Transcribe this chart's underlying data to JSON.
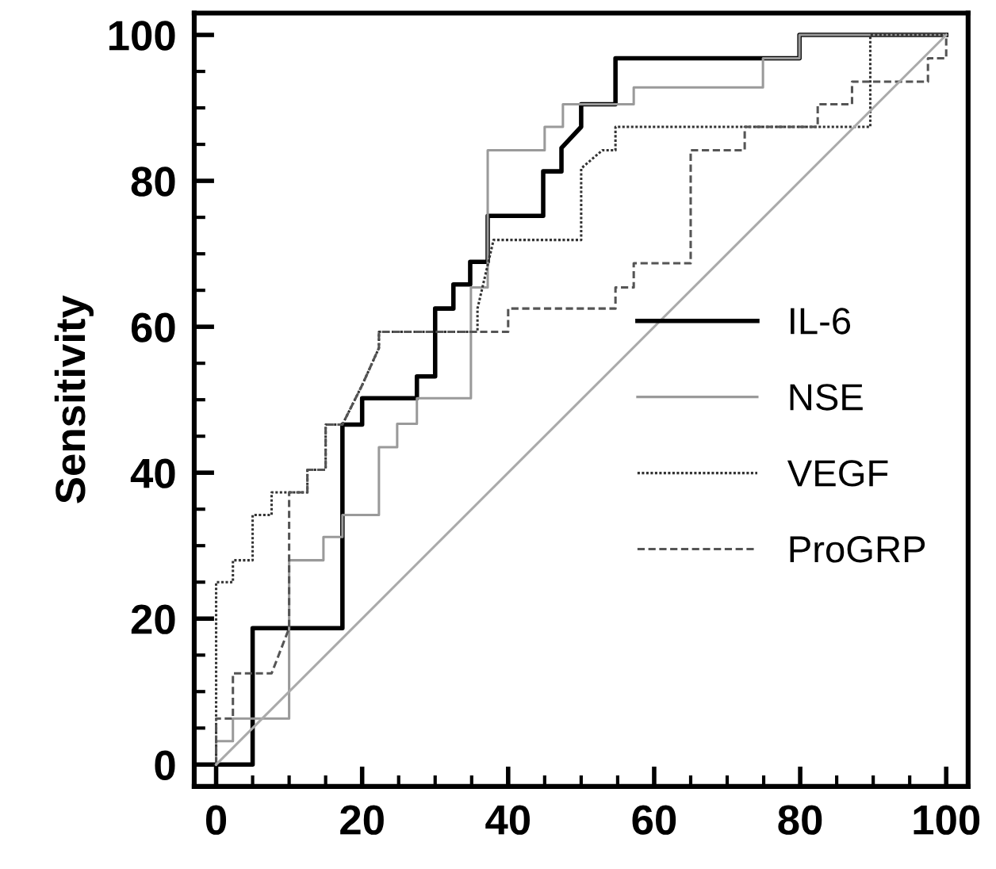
{
  "chart_data": {
    "type": "line",
    "ylabel": "Sensitivity",
    "xlim": [
      -3,
      103
    ],
    "ylim": [
      -3,
      103
    ],
    "xticks": [
      0,
      20,
      40,
      60,
      80,
      100
    ],
    "yticks": [
      0,
      20,
      40,
      60,
      80,
      100
    ],
    "grid": false,
    "legend": "right",
    "marker": "none",
    "series": [
      {
        "name": "IL-6",
        "color": "#000000",
        "line_style": "solid",
        "x": [
          0,
          5,
          5,
          17.3,
          17.3,
          20,
          20,
          27.5,
          27.5,
          30,
          30,
          32.5,
          32.5,
          34.8,
          34.8,
          37.2,
          37.2,
          44.8,
          44.8,
          47.3,
          47.3,
          50,
          50,
          54.7,
          54.7,
          79.9,
          79.9,
          100
        ],
        "values": [
          0,
          0,
          18.7,
          18.7,
          46.6,
          46.6,
          50.2,
          50.2,
          53.2,
          53.2,
          62.5,
          62.5,
          65.8,
          65.8,
          68.9,
          68.9,
          75.2,
          75.2,
          81.3,
          81.3,
          84.5,
          87.4,
          90.5,
          90.5,
          96.8,
          96.8,
          100,
          100
        ]
      },
      {
        "name": "NSE",
        "color": "#9a9a9a",
        "line_style": "solid",
        "x": [
          0,
          0,
          2.3,
          2.3,
          5,
          10,
          10,
          14.7,
          14.7,
          17.3,
          17.3,
          22.3,
          22.3,
          24.8,
          24.8,
          27.5,
          27.5,
          34.9,
          34.9,
          37.2,
          37.2,
          45,
          45,
          47.5,
          47.5,
          57.2,
          57.2,
          74.9,
          74.9,
          79.9,
          79.9,
          100
        ],
        "values": [
          0,
          3.2,
          3.2,
          6.3,
          6.3,
          6.3,
          28,
          28,
          31.2,
          31.2,
          34.2,
          34.2,
          43.5,
          43.5,
          46.7,
          46.7,
          50.2,
          50.2,
          65.4,
          65.4,
          84.2,
          84.2,
          87.4,
          87.4,
          90.5,
          90.5,
          92.8,
          92.8,
          96.8,
          96.8,
          100,
          100
        ]
      },
      {
        "name": "VEGF",
        "color": "#333333",
        "line_style": "dotted",
        "x": [
          0,
          0,
          2.3,
          2.3,
          5,
          5,
          7.6,
          7.6,
          12.5,
          12.5,
          15,
          15,
          17.3,
          20,
          22.3,
          22.3,
          35.8,
          35.8,
          38,
          50,
          50,
          52.9,
          54.7,
          54.7,
          89.6,
          89.6,
          100
        ],
        "values": [
          0,
          25,
          25,
          28,
          28,
          34.2,
          34.2,
          37.3,
          37.3,
          40.4,
          40.4,
          46.6,
          46.6,
          52,
          57.1,
          59.3,
          59.3,
          62.5,
          71.9,
          71.9,
          81.7,
          84.2,
          84.2,
          87.4,
          87.4,
          100,
          100
        ]
      },
      {
        "name": "ProGRP",
        "color": "#555555",
        "line_style": "dashed",
        "x": [
          0,
          0,
          2.3,
          2.3,
          7.6,
          10,
          10,
          12.5,
          12.5,
          15,
          15,
          17.3,
          20,
          22.3,
          22.3,
          40,
          40,
          54.7,
          54.7,
          57.2,
          57.2,
          65,
          65,
          72.4,
          72.4,
          82.4,
          82.4,
          87.1,
          87.1,
          97.5,
          97.5,
          100,
          100
        ],
        "values": [
          0,
          6.3,
          6.3,
          12.5,
          12.5,
          18.7,
          37.3,
          37.3,
          40.4,
          40.4,
          46.6,
          46.6,
          52,
          57.1,
          59.3,
          59.3,
          62.5,
          62.5,
          65.4,
          65.4,
          68.7,
          68.7,
          84.2,
          84.2,
          87.4,
          87.4,
          90.5,
          90.5,
          93.6,
          93.6,
          96.8,
          96.8,
          100
        ]
      },
      {
        "color": "#aaaaaa",
        "line_style": "solid",
        "x": [
          0,
          100
        ],
        "values": [
          0,
          100
        ]
      }
    ]
  }
}
